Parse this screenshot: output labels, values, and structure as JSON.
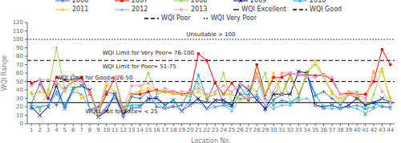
{
  "chart_data": {
    "type": "line",
    "xlabel": "Location No.",
    "ylabel": "WQI Range",
    "x": [
      1,
      2,
      3,
      4,
      5,
      6,
      7,
      8,
      9,
      10,
      11,
      12,
      13,
      14,
      15,
      16,
      17,
      18,
      19,
      20,
      21,
      22,
      23,
      24,
      25,
      26,
      27,
      28,
      29,
      30,
      31,
      32,
      33,
      34,
      35,
      36,
      37,
      38,
      39,
      40,
      41,
      42,
      43,
      44
    ],
    "xlim": [
      0.5,
      44.5
    ],
    "xticks": [
      1,
      2,
      3,
      4,
      5,
      6,
      7,
      8,
      9,
      10,
      11,
      12,
      13,
      14,
      15,
      16,
      17,
      18,
      19,
      20,
      21,
      22,
      23,
      24,
      25,
      26,
      27,
      28,
      29,
      30,
      31,
      32,
      33,
      34,
      35,
      36,
      37,
      38,
      39,
      40,
      41,
      42,
      43,
      44
    ],
    "ylim": [
      0,
      120
    ],
    "yticks": [
      0,
      10,
      20,
      30,
      40,
      50,
      60,
      70,
      80,
      90,
      100,
      110,
      120
    ],
    "grid": false,
    "legend": "top",
    "series": [
      {
        "name": "2006",
        "color": "#4472C4",
        "marker": "plus",
        "values": [
          24,
          47,
          30,
          22,
          42,
          50,
          54,
          17,
          20,
          38,
          35,
          8,
          32,
          30,
          38,
          20,
          18,
          20,
          22,
          40,
          28,
          26,
          50,
          24,
          22,
          44,
          30,
          32,
          16,
          28,
          35,
          58,
          35,
          57,
          33,
          38,
          30,
          22,
          35,
          30,
          22,
          25,
          20,
          20
        ]
      },
      {
        "name": "2007",
        "color": "#FF0000",
        "marker": "square",
        "values": [
          48,
          52,
          30,
          55,
          52,
          52,
          55,
          35,
          14,
          35,
          55,
          15,
          35,
          35,
          38,
          40,
          38,
          38,
          35,
          37,
          83,
          75,
          48,
          35,
          48,
          35,
          28,
          70,
          34,
          55,
          55,
          60,
          58,
          58,
          57,
          58,
          52,
          35,
          36,
          35,
          35,
          50,
          88,
          70
        ]
      },
      {
        "name": "2008",
        "color": "#92D050",
        "marker": "plus",
        "values": [
          37,
          15,
          40,
          90,
          40,
          58,
          50,
          38,
          14,
          45,
          55,
          12,
          35,
          38,
          60,
          35,
          38,
          35,
          35,
          32,
          48,
          30,
          35,
          60,
          26,
          35,
          45,
          38,
          60,
          25,
          60,
          25,
          30,
          62,
          70,
          56,
          38,
          25,
          38,
          38,
          10,
          35,
          65,
          26
        ]
      },
      {
        "name": "2009",
        "color": "#000080",
        "marker": "x",
        "values": [
          20,
          10,
          20,
          45,
          18,
          42,
          45,
          40,
          8,
          15,
          35,
          12,
          18,
          20,
          30,
          30,
          22,
          28,
          15,
          22,
          30,
          18,
          28,
          28,
          22,
          48,
          40,
          28,
          18,
          35,
          35,
          35,
          62,
          60,
          22,
          20,
          22,
          18,
          22,
          30,
          22,
          25,
          30,
          25
        ]
      },
      {
        "name": "2010",
        "color": "#00B0F0",
        "marker": "triangle",
        "values": [
          18,
          20,
          22,
          38,
          22,
          42,
          45,
          38,
          8,
          20,
          35,
          20,
          22,
          22,
          28,
          32,
          22,
          28,
          15,
          28,
          58,
          30,
          20,
          22,
          20,
          35,
          35,
          60,
          30,
          22,
          28,
          25,
          32,
          60,
          35,
          20,
          22,
          18,
          20,
          22,
          18,
          20,
          30,
          25
        ]
      },
      {
        "name": "2011",
        "color": "#FFC000",
        "marker": "plus",
        "values": [
          35,
          38,
          35,
          48,
          38,
          50,
          30,
          35,
          12,
          45,
          38,
          15,
          35,
          38,
          42,
          38,
          38,
          35,
          35,
          35,
          38,
          32,
          35,
          35,
          35,
          28,
          30,
          60,
          35,
          60,
          35,
          55,
          35,
          58,
          75,
          56,
          35,
          30,
          35,
          32,
          25,
          60,
          62,
          30
        ]
      },
      {
        "name": "2012",
        "color": "#7FAADC",
        "marker": "triangle",
        "values": [
          22,
          20,
          22,
          35,
          18,
          38,
          35,
          18,
          8,
          20,
          30,
          10,
          18,
          20,
          28,
          25,
          18,
          22,
          15,
          22,
          25,
          18,
          20,
          22,
          15,
          30,
          30,
          35,
          22,
          18,
          22,
          22,
          28,
          30,
          22,
          18,
          18,
          18,
          20,
          18,
          12,
          18,
          22,
          18
        ]
      },
      {
        "name": "2013",
        "color": "#FF99CC",
        "marker": "square",
        "values": [
          45,
          52,
          52,
          50,
          40,
          52,
          50,
          38,
          15,
          50,
          55,
          18,
          45,
          45,
          48,
          38,
          42,
          38,
          38,
          38,
          42,
          35,
          38,
          45,
          38,
          48,
          42,
          55,
          25,
          38,
          60,
          60,
          58,
          55,
          55,
          58,
          55,
          35,
          38,
          35,
          30,
          62,
          38,
          25
        ]
      }
    ],
    "reference_lines": [
      {
        "name": "WQI Excellent",
        "y": 25,
        "color": "black",
        "line_style": "solid"
      },
      {
        "name": "WQI Good",
        "y": 50,
        "color": "black",
        "line_style": "dashed"
      },
      {
        "name": "WQI Poor",
        "y": 75,
        "color": "black",
        "line_style": "dashed"
      },
      {
        "name": "WQI Very Poor",
        "y": 100,
        "color": "black",
        "line_style": "dotted"
      }
    ],
    "annotations": [
      {
        "text": "Unsuitable > 100",
        "x": 22.5,
        "y": 104,
        "align": "center"
      },
      {
        "text": "WQI Limit for Very Poor= 76-100",
        "x": 9.5,
        "y": 82,
        "align": "left"
      },
      {
        "text": "WQI Limit for Poor= 51-75",
        "x": 9.5,
        "y": 66,
        "align": "left"
      },
      {
        "text": "WQI Limit for Good= 26-50",
        "x": 4.0,
        "y": 52,
        "align": "left"
      },
      {
        "text": "WQI Limit for Exce= < 25",
        "x": 7.5,
        "y": 12,
        "align": "left"
      }
    ]
  }
}
